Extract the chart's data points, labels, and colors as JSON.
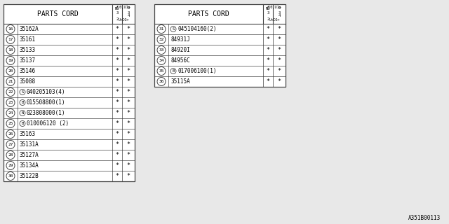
{
  "bg_color": "#e8e8e8",
  "table_bg": "#ffffff",
  "border_color": "#444444",
  "text_color": "#000000",
  "font_family": "DejaVu Sans Mono",
  "watermark": "A351B00113",
  "left_table": {
    "header": "PARTS CORD",
    "rows": [
      {
        "num": "16",
        "prefix": "",
        "part": "35162A",
        "suffix": ""
      },
      {
        "num": "17",
        "prefix": "",
        "part": "35161",
        "suffix": ""
      },
      {
        "num": "18",
        "prefix": "",
        "part": "35133",
        "suffix": ""
      },
      {
        "num": "19",
        "prefix": "",
        "part": "35137",
        "suffix": ""
      },
      {
        "num": "20",
        "prefix": "",
        "part": "35146",
        "suffix": ""
      },
      {
        "num": "21",
        "prefix": "",
        "part": "35088",
        "suffix": ""
      },
      {
        "num": "22",
        "prefix": "S",
        "part": "040205103",
        "suffix": "(4)"
      },
      {
        "num": "23",
        "prefix": "B",
        "part": "015508800",
        "suffix": "(1)"
      },
      {
        "num": "24",
        "prefix": "N",
        "part": "023808000",
        "suffix": "(1)"
      },
      {
        "num": "25",
        "prefix": "B",
        "part": "010006120",
        "suffix": " (2)"
      },
      {
        "num": "26",
        "prefix": "",
        "part": "35163",
        "suffix": ""
      },
      {
        "num": "27",
        "prefix": "",
        "part": "35131A",
        "suffix": ""
      },
      {
        "num": "28",
        "prefix": "",
        "part": "35127A",
        "suffix": ""
      },
      {
        "num": "29",
        "prefix": "",
        "part": "35134A",
        "suffix": ""
      },
      {
        "num": "30",
        "prefix": "",
        "part": "35122B",
        "suffix": ""
      }
    ]
  },
  "right_table": {
    "header": "PARTS CORD",
    "rows": [
      {
        "num": "31",
        "prefix": "S",
        "part": "045104160",
        "suffix": "(2)"
      },
      {
        "num": "32",
        "prefix": "",
        "part": "84931J",
        "suffix": ""
      },
      {
        "num": "33",
        "prefix": "",
        "part": "84920I",
        "suffix": ""
      },
      {
        "num": "34",
        "prefix": "",
        "part": "84956C",
        "suffix": ""
      },
      {
        "num": "35",
        "prefix": "B",
        "part": "017006100",
        "suffix": "(1)"
      },
      {
        "num": "36",
        "prefix": "",
        "part": "35115A",
        "suffix": ""
      }
    ]
  }
}
